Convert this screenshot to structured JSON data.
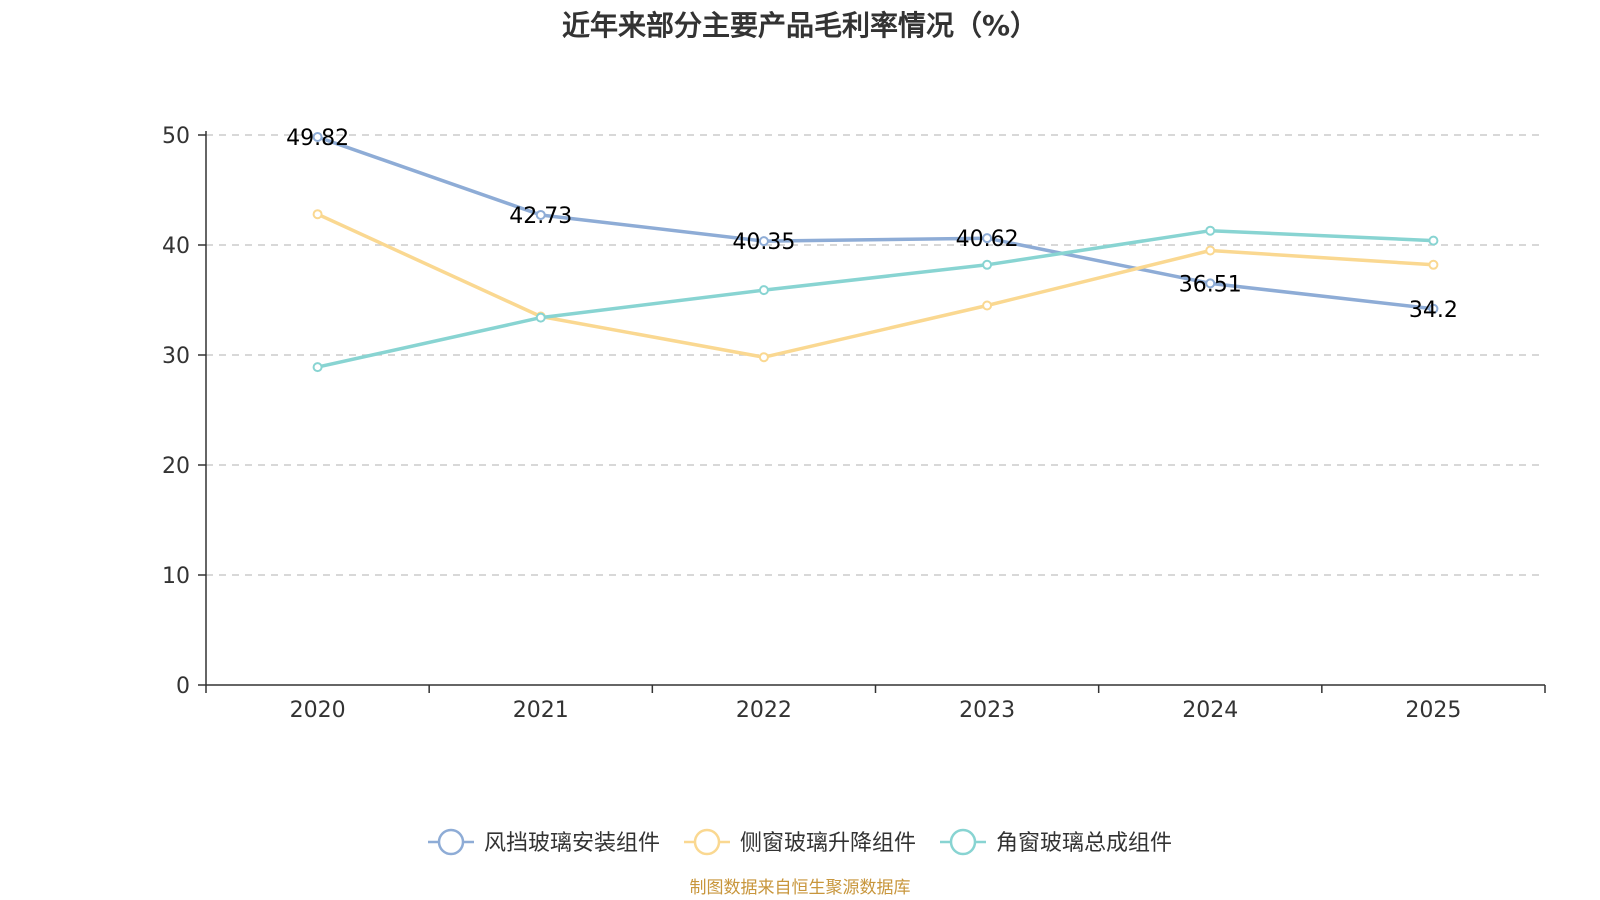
{
  "chart_data": {
    "type": "line",
    "title": "近年来部分主要产品毛利率情况（%）",
    "categories": [
      "2020",
      "2021",
      "2022",
      "2023",
      "2024",
      "2025"
    ],
    "ylim": [
      0,
      50
    ],
    "yticks": [
      0,
      10,
      20,
      30,
      40,
      50
    ],
    "ytick_labels": [
      "0",
      "10",
      "20",
      "30",
      "40",
      "50"
    ],
    "grid": true,
    "legend_position": "bottom",
    "series": [
      {
        "name": "风挡玻璃安装组件",
        "color": "#8eacd6",
        "values": [
          49.82,
          42.73,
          40.35,
          40.62,
          36.51,
          34.2
        ],
        "labels": [
          "49.82",
          "42.73",
          "40.35",
          "40.62",
          "36.51",
          "34.2"
        ],
        "show_labels": true
      },
      {
        "name": "侧窗玻璃升降组件",
        "color": "#fad891",
        "values": [
          42.8,
          33.5,
          29.8,
          34.5,
          39.5,
          38.2
        ],
        "labels": [],
        "show_labels": false
      },
      {
        "name": "角窗玻璃总成组件",
        "color": "#88d4d2",
        "values": [
          28.9,
          33.4,
          35.9,
          38.2,
          41.3,
          40.4
        ],
        "labels": [],
        "show_labels": false
      }
    ],
    "source_note": "制图数据来自恒生聚源数据库"
  }
}
